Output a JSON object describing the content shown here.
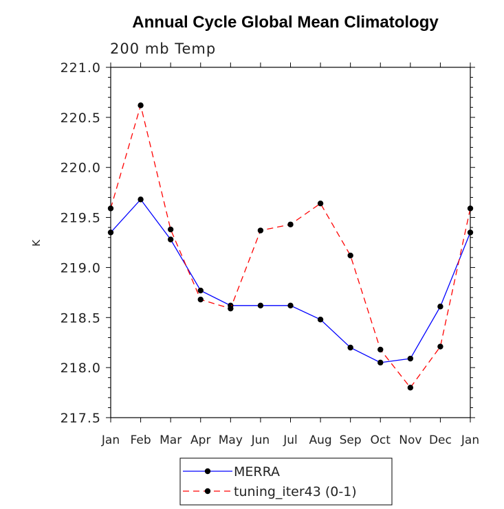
{
  "chart_data": {
    "type": "line",
    "title": "Annual Cycle Global Mean Climatology",
    "subtitle": "200 mb Temp",
    "ylabel": "K",
    "xlabel": "",
    "categories": [
      "Jan",
      "Feb",
      "Mar",
      "Apr",
      "May",
      "Jun",
      "Jul",
      "Aug",
      "Sep",
      "Oct",
      "Nov",
      "Dec",
      "Jan"
    ],
    "ylim": [
      217.5,
      221.0
    ],
    "yticks": [
      "217.5",
      "218.0",
      "218.5",
      "219.0",
      "219.5",
      "220.0",
      "220.5",
      "221.0"
    ],
    "series": [
      {
        "name": "MERRA",
        "color": "#0000ff",
        "dash": "solid",
        "values": [
          219.35,
          219.68,
          219.28,
          218.77,
          218.62,
          218.62,
          218.62,
          218.48,
          218.2,
          218.05,
          218.09,
          218.61,
          219.35
        ]
      },
      {
        "name": "tuning_iter43 (0-1)",
        "color": "#ff0000",
        "dash": "dashed",
        "values": [
          219.59,
          220.62,
          219.38,
          218.68,
          218.59,
          219.37,
          219.43,
          219.64,
          219.12,
          218.18,
          217.8,
          218.21,
          219.59
        ]
      }
    ],
    "legend_position": "bottom-center",
    "marker_color": "#000000"
  }
}
